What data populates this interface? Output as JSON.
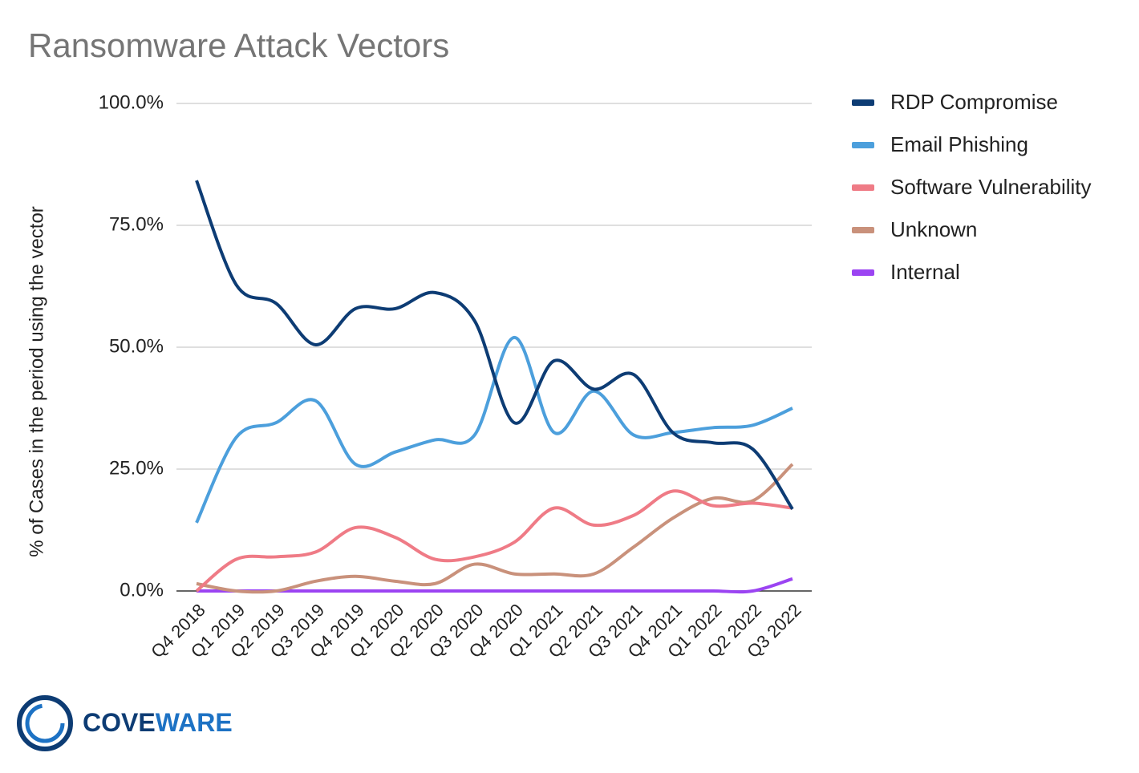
{
  "chart_data": {
    "type": "line",
    "title": "Ransomware Attack Vectors",
    "y_label": "% of Cases in the period using the vector",
    "categories": [
      "Q4 2018",
      "Q1 2019",
      "Q2 2019",
      "Q3 2019",
      "Q4 2019",
      "Q1 2020",
      "Q2 2020",
      "Q3 2020",
      "Q4 2020",
      "Q1 2021",
      "Q2 2021",
      "Q3 2021",
      "Q4 2021",
      "Q1 2022",
      "Q2 2022",
      "Q3 2022"
    ],
    "series": [
      {
        "name": "RDP Compromise",
        "color": "#0d3c74",
        "values": [
          84.2,
          62.8,
          59,
          50.5,
          57.9,
          57.9,
          61.2,
          55.4,
          34.5,
          47.2,
          41.4,
          44.4,
          32.4,
          30.4,
          29.1,
          16.8
        ]
      },
      {
        "name": "Email Phishing",
        "color": "#4c9fdc",
        "values": [
          14,
          31.5,
          34.5,
          39,
          26,
          28.5,
          31,
          32,
          52,
          32.5,
          41,
          32,
          32.5,
          33.5,
          34,
          37.5
        ]
      },
      {
        "name": "Software Vulnerability",
        "color": "#ef7b86",
        "values": [
          0,
          6.5,
          7,
          8,
          13,
          11,
          6.5,
          7,
          10,
          17,
          13.5,
          15.5,
          20.5,
          17.5,
          18,
          17
        ]
      },
      {
        "name": "Unknown",
        "color": "#c9917b",
        "values": [
          1.5,
          0,
          0,
          2,
          3,
          2,
          1.5,
          5.5,
          3.5,
          3.5,
          3.5,
          9,
          15,
          19,
          18.5,
          26
        ]
      },
      {
        "name": "Internal",
        "color": "#9b44f2",
        "values": [
          0,
          0,
          0,
          0,
          0,
          0,
          0,
          0,
          0,
          0,
          0,
          0,
          0,
          0,
          0,
          2.5
        ]
      }
    ],
    "ylim": [
      0,
      100
    ],
    "yticks": [
      {
        "value": 0,
        "label": "0.0%"
      },
      {
        "value": 25,
        "label": "25.0%"
      },
      {
        "value": 50,
        "label": "50.0%"
      },
      {
        "value": 75,
        "label": "75.0%"
      },
      {
        "value": 100,
        "label": "100.0%"
      }
    ],
    "grid": true,
    "smooth": true,
    "legend": "right"
  },
  "logo": [
    "COVE",
    "WARE"
  ]
}
